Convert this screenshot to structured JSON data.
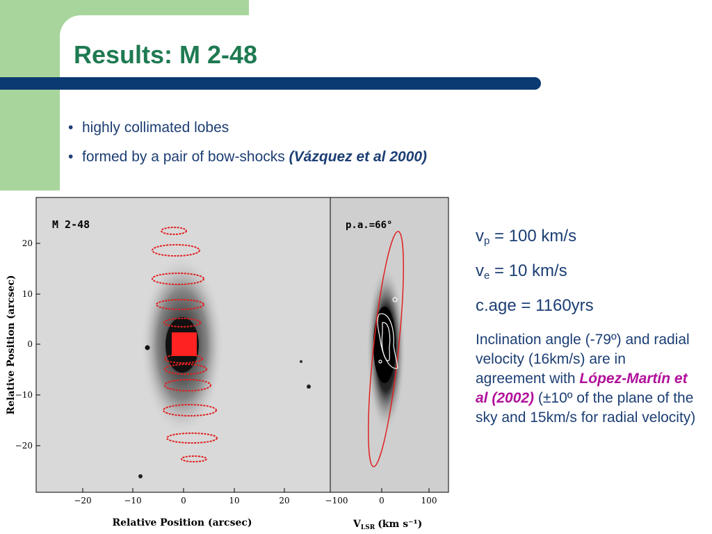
{
  "slide": {
    "title": "Results: M 2-48",
    "bullets": [
      {
        "text": "highly collimated lobes"
      },
      {
        "text": "formed by a pair of bow-shocks",
        "citation": "(Vázquez et al 2000)"
      }
    ]
  },
  "figure": {
    "left_panel_label": "M 2-48",
    "right_panel_label": "p.a.=66°",
    "x_axis_label": "Relative Position (arcsec)",
    "y_axis_label": "Relative Position (arcsec)",
    "velocity_axis_label": "V",
    "velocity_axis_subscript": "LSR",
    "velocity_axis_units": "(km s⁻¹)",
    "y_ticks": [
      "20",
      "10",
      "0",
      "−10",
      "−20"
    ],
    "x_ticks": [
      "−20",
      "−10",
      "0",
      "10",
      "20"
    ],
    "v_ticks": [
      "−100",
      "0",
      "100"
    ]
  },
  "side": {
    "vp_symbol": "v",
    "vp_sub": "p",
    "vp_value": " = 100 km/s",
    "ve_symbol": "v",
    "ve_sub": "e",
    "ve_value": " = 10 km/s",
    "age": "c.age = 1160yrs",
    "para_1": "Inclination angle (-79º) and radial velocity (16km/s) are in agreement with ",
    "para_cite": "López-Martín et al (2002)",
    "para_2": " (±10º of the plane of the sky and 15km/s for radial velocity)"
  },
  "colors": {
    "title": "#1f7a52",
    "bar": "#0b3a72",
    "accent_green": "#a8d59b",
    "model": "#e02020",
    "citation": "#b1109a"
  }
}
